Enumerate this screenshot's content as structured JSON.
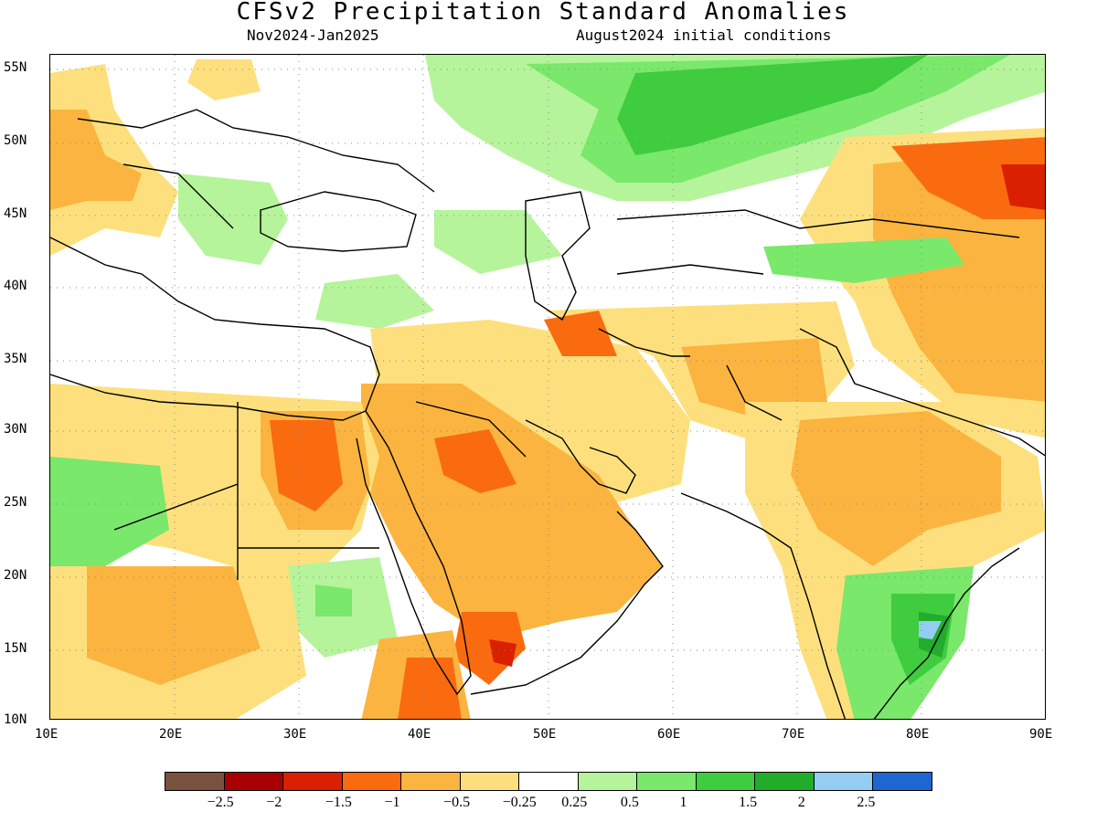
{
  "title": "CFSv2 Precipitation Standard Anomalies",
  "period": "Nov2024-Jan2025",
  "init": "August2024 initial conditions",
  "lat_labels": [
    "55N",
    "50N",
    "45N",
    "40N",
    "35N",
    "30N",
    "25N",
    "20N",
    "15N",
    "10N"
  ],
  "lon_labels": [
    "10E",
    "20E",
    "30E",
    "40E",
    "50E",
    "60E",
    "70E",
    "80E",
    "90E"
  ],
  "colorbar": {
    "colors": [
      "#7a5340",
      "#a60000",
      "#d92000",
      "#fa6b10",
      "#fbb43f",
      "#fde07d",
      "#ffffff",
      "#b5f49a",
      "#79e86b",
      "#3fcc3f",
      "#21ad2a",
      "#94cdf4",
      "#1e66d2"
    ],
    "labels": [
      "−2.5",
      "−2",
      "−1.5",
      "−1",
      "−0.5",
      "−0.25",
      "0.25",
      "0.5",
      "1",
      "1.5",
      "2",
      "2.5"
    ]
  },
  "legend_colors": {
    "dry_1": "#fde07d",
    "dry_2": "#fbb43f",
    "dry_3": "#fa6b10",
    "dry_4": "#d92000",
    "wet_1": "#b5f49a",
    "wet_2": "#79e86b",
    "wet_3": "#3fcc3f",
    "wet_4": "#21ad2a",
    "wet_5": "#94cdf4"
  }
}
